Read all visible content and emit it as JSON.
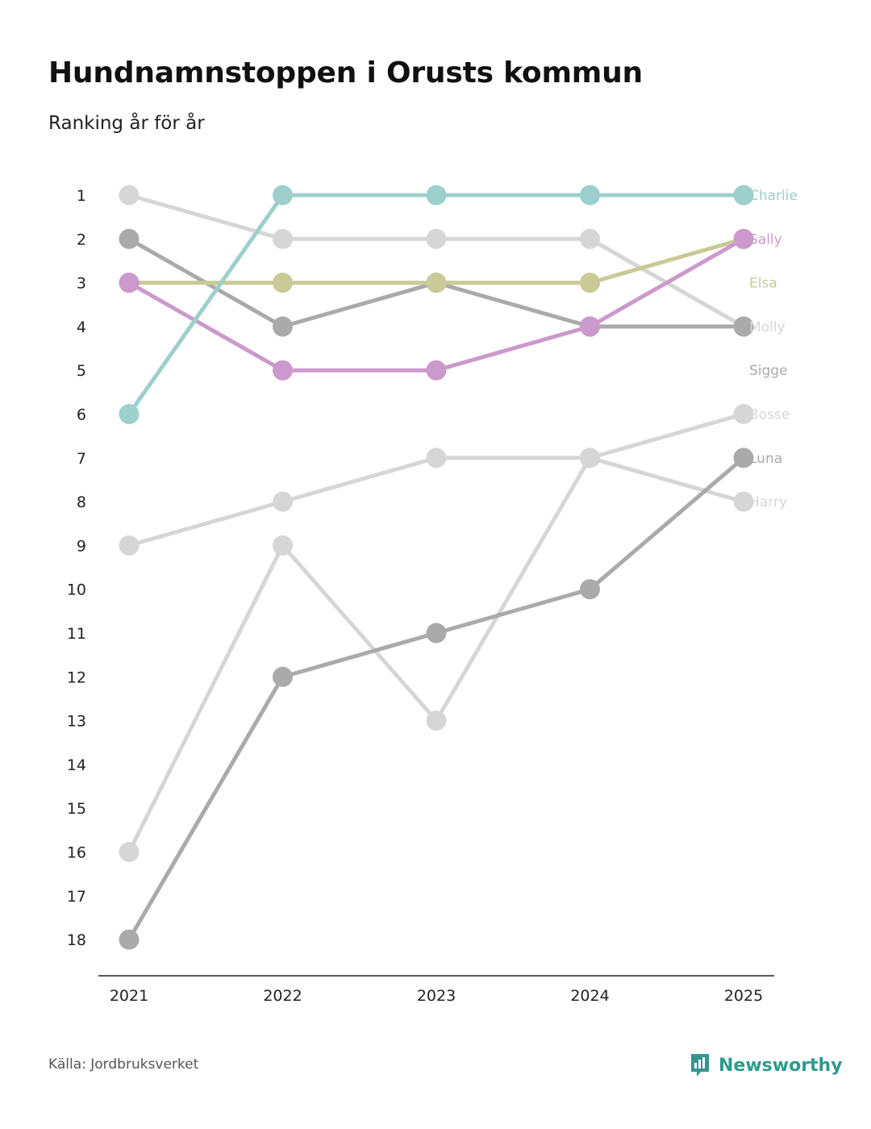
{
  "header": {
    "title": "Hundnamnstoppen i Orusts kommun",
    "subtitle": "Ranking år för år"
  },
  "footer": {
    "source": "Källa: Jordbruksverket",
    "brand": "Newsworthy"
  },
  "colors": {
    "teal": "#9dcfcc",
    "purple": "#cc99cc",
    "olive": "#c9ca96",
    "darkgray": "#aaaaaa",
    "lightgray": "#d6d6d6",
    "axis": "#222222",
    "brand": "#2e9a8e"
  },
  "chart_data": {
    "type": "line",
    "title": "Hundnamnstoppen i Orusts kommun",
    "subtitle": "Ranking år för år",
    "x": [
      "2021",
      "2022",
      "2023",
      "2024",
      "2025"
    ],
    "y_ticks": [
      "1",
      "2",
      "3",
      "4",
      "5",
      "6",
      "7",
      "8",
      "9",
      "10",
      "11",
      "12",
      "13",
      "14",
      "15",
      "16",
      "17",
      "18"
    ],
    "ylim": [
      1,
      18
    ],
    "y_inverted": true,
    "xlabel": "",
    "ylabel": "",
    "grid": false,
    "series": [
      {
        "name": "Charlie",
        "color": "#9dcfcc",
        "values": [
          6,
          1,
          1,
          1,
          1
        ]
      },
      {
        "name": "Sally",
        "color": "#cc99cc",
        "values": [
          3,
          5,
          5,
          4,
          2
        ]
      },
      {
        "name": "Elsa",
        "color": "#c9ca96",
        "values": [
          3,
          3,
          3,
          3,
          2
        ]
      },
      {
        "name": "Molly",
        "color": "#d6d6d6",
        "values": [
          1,
          2,
          2,
          2,
          4
        ]
      },
      {
        "name": "Sigge",
        "color": "#aaaaaa",
        "values": [
          2,
          4,
          3,
          4,
          4
        ]
      },
      {
        "name": "Bosse",
        "color": "#d6d6d6",
        "values": [
          9,
          8,
          7,
          7,
          6
        ]
      },
      {
        "name": "Luna",
        "color": "#aaaaaa",
        "values": [
          18,
          12,
          11,
          10,
          7
        ]
      },
      {
        "name": "Harry",
        "color": "#d6d6d6",
        "values": [
          16,
          9,
          13,
          7,
          8
        ]
      }
    ]
  }
}
